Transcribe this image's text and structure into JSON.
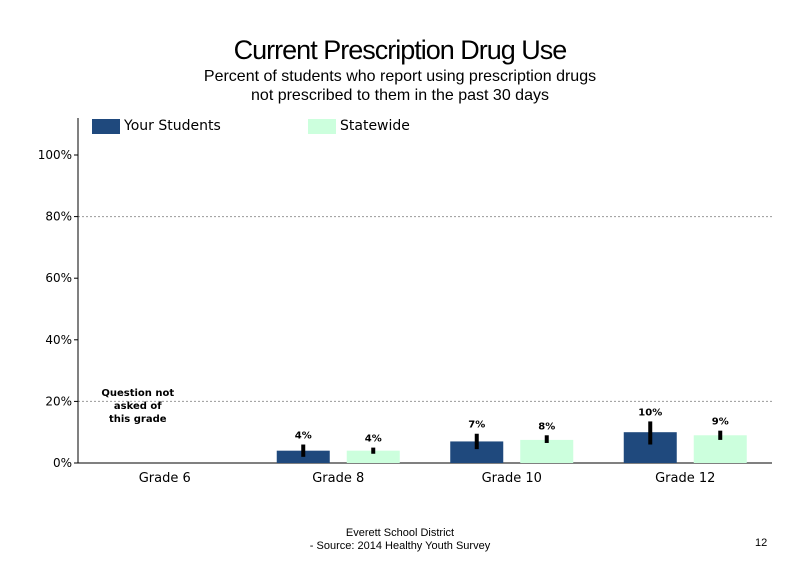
{
  "title": "Current Prescription Drug Use",
  "subtitle": "Percent of students  who report using prescription drugs not prescribed to them in the past 30 days",
  "footer": {
    "line1": "Everett School District",
    "line2": "- Source: 2014 Healthy  Youth Survey"
  },
  "page_number": "12",
  "colors": {
    "your_students": "#1f497d",
    "statewide": "#ccffdd",
    "error_bar": "#000000",
    "gridline": "#9a9a9a"
  },
  "chart_data": {
    "type": "bar",
    "title": "Current Prescription Drug Use",
    "categories": [
      "Grade 6",
      "Grade 8",
      "Grade 10",
      "Grade 12"
    ],
    "series": [
      {
        "name": "Your Students",
        "values": [
          null,
          4,
          7,
          10
        ],
        "labels": [
          "",
          "4%",
          "7%",
          "10%"
        ],
        "ci_low": [
          null,
          2,
          4.5,
          6
        ],
        "ci_high": [
          null,
          6,
          9.5,
          13.5
        ]
      },
      {
        "name": "Statewide",
        "values": [
          null,
          4,
          7.5,
          9
        ],
        "labels": [
          "",
          "4%",
          "8%",
          "9%"
        ],
        "ci_low": [
          null,
          3,
          6.5,
          7.5
        ],
        "ci_high": [
          null,
          5,
          9,
          10.5
        ]
      }
    ],
    "annotation": {
      "category": "Grade 6",
      "lines": [
        "Question not",
        "asked of",
        "this grade"
      ]
    },
    "ylim": [
      0,
      100
    ],
    "yticks": [
      0,
      20,
      40,
      60,
      80,
      100
    ],
    "ytick_labels": [
      "0%",
      "20%",
      "40%",
      "60%",
      "80%",
      "100%"
    ],
    "grid_values": [
      20,
      80
    ],
    "legend_position": "top-left",
    "xlabel": "",
    "ylabel": ""
  }
}
